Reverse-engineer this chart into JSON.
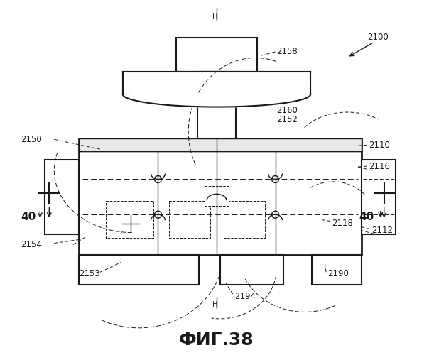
{
  "title": "ФИГ.38",
  "bg_color": "#ffffff",
  "line_color": "#1a1a1a",
  "fig_width": 6.11,
  "fig_height": 5.0
}
